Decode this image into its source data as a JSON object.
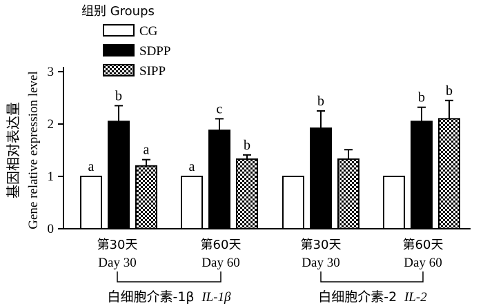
{
  "chart_data": {
    "type": "bar",
    "ylabel_cn": "基因相对表达量",
    "ylabel_en": "Gene relative expression level",
    "yticks": [
      "0",
      "1",
      "2",
      "3"
    ],
    "ylim": [
      0,
      3
    ],
    "legend": {
      "title": "组别 Groups",
      "placement": "top-left",
      "entries": [
        {
          "name": "CG",
          "fill": "#ffffff"
        },
        {
          "name": "SDPP",
          "fill": "#000000"
        },
        {
          "name": "SIPP",
          "fill": "pattern"
        }
      ]
    },
    "categories": [
      {
        "cn": "第30天",
        "en": "Day 30"
      },
      {
        "cn": "第60天",
        "en": "Day 60"
      },
      {
        "cn": "第30天",
        "en": "Day 30"
      },
      {
        "cn": "第60天",
        "en": "Day 60"
      }
    ],
    "gene_groups": [
      {
        "cn": "白细胞介素-1β",
        "italic": "IL-1β"
      },
      {
        "cn": "白细胞介素-2",
        "italic": "IL-2"
      }
    ],
    "series": [
      {
        "name": "CG",
        "values": [
          1.0,
          1.0,
          1.0,
          1.0
        ],
        "errors": [
          0,
          0,
          0,
          0
        ],
        "letters": [
          "a",
          "a",
          "",
          ""
        ]
      },
      {
        "name": "SDPP",
        "values": [
          2.05,
          1.88,
          1.92,
          2.05
        ],
        "errors": [
          0.3,
          0.22,
          0.33,
          0.27
        ],
        "letters": [
          "b",
          "c",
          "b",
          "b"
        ]
      },
      {
        "name": "SIPP",
        "values": [
          1.2,
          1.33,
          1.33,
          2.1
        ],
        "errors": [
          0.12,
          0.08,
          0.18,
          0.35
        ],
        "letters": [
          "a",
          "b",
          "",
          "b"
        ]
      }
    ]
  }
}
